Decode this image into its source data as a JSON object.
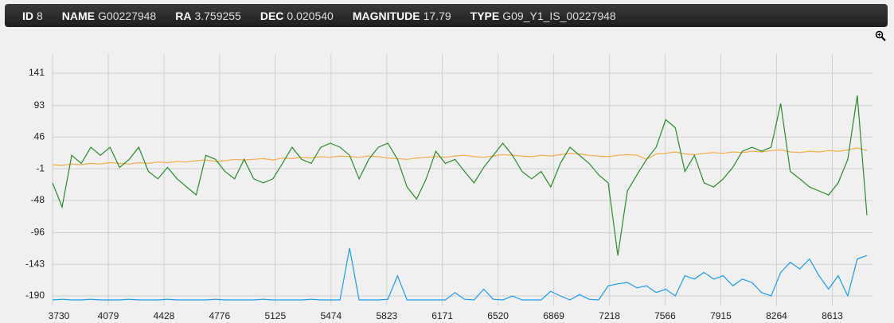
{
  "header": {
    "fields": [
      {
        "label": "ID",
        "value": "8"
      },
      {
        "label": "NAME",
        "value": "G00227948"
      },
      {
        "label": "RA",
        "value": "3.759255"
      },
      {
        "label": "DEC",
        "value": "0.020540"
      },
      {
        "label": "MAGNITUDE",
        "value": "17.79"
      },
      {
        "label": "TYPE",
        "value": "G09_Y1_IS_00227948"
      }
    ]
  },
  "chart_data": {
    "type": "line",
    "x": [
      3730,
      3790,
      3850,
      3910,
      3970,
      4030,
      4090,
      4150,
      4210,
      4270,
      4330,
      4390,
      4450,
      4510,
      4570,
      4630,
      4690,
      4750,
      4810,
      4870,
      4930,
      4990,
      5050,
      5110,
      5170,
      5230,
      5290,
      5350,
      5410,
      5470,
      5530,
      5590,
      5650,
      5710,
      5770,
      5830,
      5890,
      5950,
      6010,
      6070,
      6130,
      6190,
      6250,
      6310,
      6370,
      6430,
      6490,
      6550,
      6610,
      6670,
      6730,
      6790,
      6850,
      6910,
      6970,
      7030,
      7090,
      7150,
      7210,
      7270,
      7330,
      7390,
      7450,
      7510,
      7570,
      7630,
      7690,
      7750,
      7810,
      7870,
      7930,
      7990,
      8050,
      8110,
      8170,
      8230,
      8290,
      8350,
      8410,
      8470,
      8530,
      8590,
      8650,
      8710,
      8770,
      8830
    ],
    "series": [
      {
        "color": "#2a8a2a",
        "values": [
          -22,
          -58,
          19,
          7,
          31,
          19,
          31,
          1,
          13,
          31,
          -5,
          -16,
          1,
          -16,
          -28,
          -40,
          19,
          13,
          -5,
          -16,
          13,
          -16,
          -22,
          -16,
          7,
          31,
          13,
          7,
          31,
          37,
          31,
          19,
          -16,
          13,
          31,
          37,
          13,
          -28,
          -46,
          -16,
          25,
          7,
          13,
          -5,
          -22,
          1,
          19,
          37,
          19,
          -5,
          -16,
          -5,
          -28,
          7,
          31,
          19,
          7,
          -10,
          -22,
          -130,
          -34,
          -10,
          13,
          31,
          72,
          60,
          -5,
          19,
          -22,
          -28,
          -16,
          1,
          25,
          31,
          25,
          31,
          96,
          -5,
          -16,
          -28,
          -34,
          -40,
          -22,
          13,
          108,
          -70
        ]
      },
      {
        "color": "#f0ad4e",
        "values": [
          5,
          4,
          6,
          5,
          7,
          6,
          8,
          7,
          6,
          8,
          7,
          9,
          8,
          10,
          9,
          11,
          12,
          10,
          11,
          13,
          12,
          13,
          14,
          12,
          15,
          14,
          16,
          15,
          17,
          16,
          18,
          17,
          16,
          18,
          17,
          15,
          14,
          13,
          15,
          16,
          17,
          16,
          18,
          19,
          17,
          16,
          18,
          20,
          19,
          18,
          17,
          19,
          18,
          20,
          22,
          21,
          19,
          18,
          17,
          19,
          20,
          19,
          13,
          21,
          22,
          24,
          21,
          20,
          22,
          23,
          22,
          24,
          23,
          25,
          24,
          26,
          27,
          24,
          23,
          25,
          24,
          26,
          25,
          27,
          30,
          26
        ]
      },
      {
        "color": "#1e9be9",
        "values": [
          -196,
          -195,
          -196,
          -196,
          -195,
          -196,
          -196,
          -196,
          -195,
          -196,
          -196,
          -196,
          -195,
          -196,
          -196,
          -196,
          -196,
          -195,
          -196,
          -196,
          -196,
          -196,
          -195,
          -196,
          -196,
          -196,
          -196,
          -195,
          -196,
          -196,
          -196,
          -119,
          -196,
          -196,
          -196,
          -195,
          -160,
          -196,
          -196,
          -196,
          -196,
          -196,
          -185,
          -195,
          -196,
          -180,
          -195,
          -196,
          -190,
          -196,
          -196,
          -196,
          -183,
          -190,
          -196,
          -188,
          -195,
          -196,
          -175,
          -172,
          -170,
          -178,
          -175,
          -185,
          -180,
          -190,
          -160,
          -165,
          -155,
          -165,
          -160,
          -175,
          -165,
          -170,
          -185,
          -190,
          -155,
          -140,
          -150,
          -135,
          -160,
          -180,
          -160,
          -190,
          -135,
          -130
        ]
      }
    ],
    "xlim": [
      3730,
      8865
    ],
    "xticks": [
      3730,
      4079,
      4428,
      4776,
      5125,
      5474,
      5823,
      6171,
      6520,
      6869,
      7218,
      7566,
      7915,
      8264,
      8613
    ],
    "ylim": [
      -205.4,
      169.4
    ],
    "yticks": [
      141,
      93,
      46,
      -1,
      -48,
      -96,
      -143,
      -190
    ],
    "grid": true
  }
}
